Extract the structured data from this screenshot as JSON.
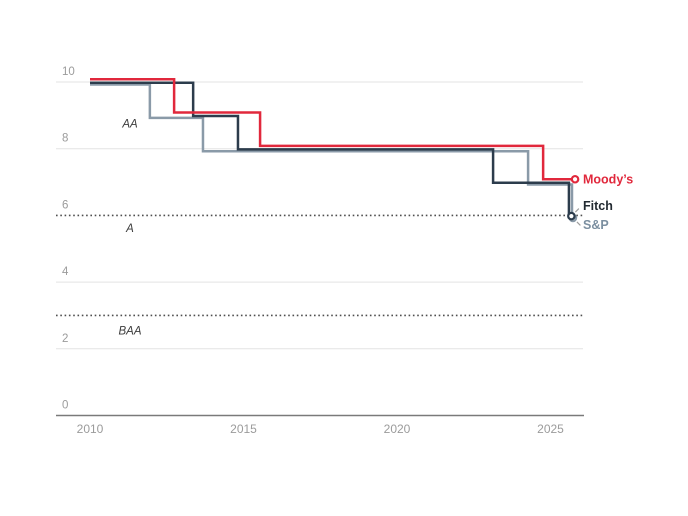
{
  "chart_data": {
    "type": "line",
    "line_style": "step",
    "title": "",
    "x_axis": {
      "ticks": [
        2010,
        2015,
        2020,
        2025
      ],
      "min": 2010,
      "max": 2026.2,
      "grid": false
    },
    "y_axis": {
      "ticks": [
        10,
        8,
        6,
        4,
        2,
        0
      ],
      "min": 0,
      "max": 10.3,
      "grid": true
    },
    "reference_lines": [
      {
        "value": 6,
        "style": "dotted"
      },
      {
        "value": 3,
        "style": "dotted"
      }
    ],
    "category_labels": [
      {
        "text": "AA",
        "value": 8.75
      },
      {
        "text": "A",
        "value": 5.62
      },
      {
        "text": "BAA",
        "value": 2.55
      }
    ],
    "series": [
      {
        "name": "S&P",
        "color": "#8a9aa8",
        "label_color": "#7b8fa0",
        "points": [
          [
            2010,
            10
          ],
          [
            2011.95,
            10
          ],
          [
            2011.95,
            9
          ],
          [
            2013.68,
            9
          ],
          [
            2013.68,
            8
          ],
          [
            2024.27,
            8
          ],
          [
            2024.27,
            7
          ],
          [
            2025.7,
            7
          ],
          [
            2025.7,
            6
          ],
          [
            2025.73,
            6
          ]
        ]
      },
      {
        "name": "Fitch",
        "color": "#2c3c4c",
        "label_color": "#222a31",
        "points": [
          [
            2010,
            10
          ],
          [
            2013.36,
            10
          ],
          [
            2013.36,
            9
          ],
          [
            2014.82,
            9
          ],
          [
            2014.82,
            8
          ],
          [
            2023.13,
            8
          ],
          [
            2023.13,
            7
          ],
          [
            2025.6,
            7
          ],
          [
            2025.6,
            6
          ],
          [
            2025.68,
            6
          ]
        ]
      },
      {
        "name": "Moody’s",
        "color": "#e1283c",
        "label_color": "#e1283c",
        "points": [
          [
            2010,
            10
          ],
          [
            2012.74,
            10
          ],
          [
            2012.74,
            9
          ],
          [
            2015.54,
            9
          ],
          [
            2015.54,
            8
          ],
          [
            2024.76,
            8
          ],
          [
            2024.76,
            7
          ],
          [
            2025.8,
            7
          ]
        ]
      }
    ],
    "legend_position": "right-of-line-end"
  },
  "colors": {
    "background": "#ffffff",
    "gridline": "#e3e3e3",
    "axis_line": "#7a7a7a",
    "tick_text": "#9b9b9b",
    "category_text": "#3d3d3d",
    "dotted_line": "#4e4e4e",
    "leader_line": "#9e9e9e",
    "marker_fill": "#ffffff"
  }
}
